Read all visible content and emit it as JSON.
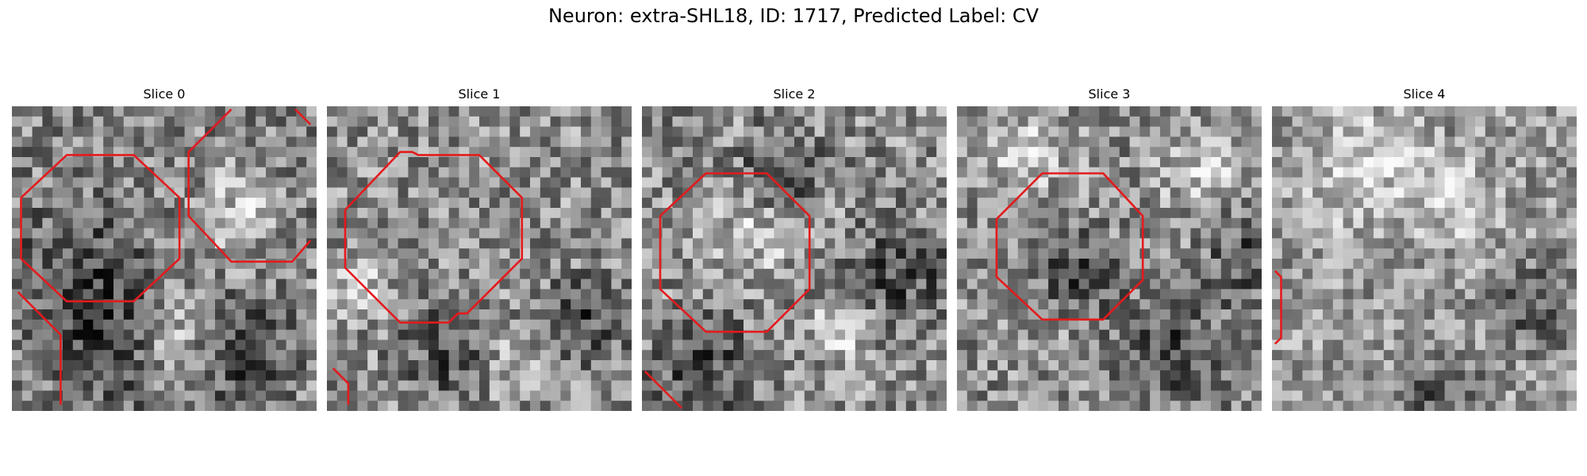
{
  "figure": {
    "title": "Neuron: extra-SHL18, ID: 1717, Predicted Label: CV",
    "overlay_color": "#e41a1c",
    "grid_cells": 30
  },
  "slices": [
    {
      "label": "Slice 0",
      "brightness": 0.52,
      "contrast": 0.55,
      "seed": 11,
      "dark_regions": [
        [
          0.22,
          0.55,
          0.32
        ],
        [
          0.3,
          0.8,
          0.28
        ],
        [
          0.75,
          0.8,
          0.25
        ]
      ],
      "bright_regions": [
        [
          0.75,
          0.35,
          0.22
        ],
        [
          0.55,
          0.78,
          0.18
        ]
      ],
      "polylines": [
        [
          [
            0.03,
            0.3
          ],
          [
            0.18,
            0.16
          ],
          [
            0.4,
            0.16
          ],
          [
            0.55,
            0.3
          ],
          [
            0.55,
            0.5
          ],
          [
            0.4,
            0.64
          ],
          [
            0.18,
            0.64
          ],
          [
            0.03,
            0.5
          ],
          [
            0.03,
            0.3
          ]
        ],
        [
          [
            0.72,
            0.01
          ],
          [
            0.58,
            0.15
          ],
          [
            0.58,
            0.36
          ],
          [
            0.72,
            0.51
          ],
          [
            0.92,
            0.51
          ],
          [
            0.98,
            0.44
          ]
        ],
        [
          [
            0.93,
            0.01
          ],
          [
            0.98,
            0.06
          ]
        ],
        [
          [
            0.02,
            0.61
          ],
          [
            0.16,
            0.75
          ],
          [
            0.16,
            0.98
          ]
        ]
      ]
    },
    {
      "label": "Slice 1",
      "brightness": 0.56,
      "contrast": 0.55,
      "seed": 23,
      "dark_regions": [
        [
          0.85,
          0.7,
          0.22
        ],
        [
          0.4,
          0.8,
          0.25
        ]
      ],
      "bright_regions": [
        [
          0.1,
          0.6,
          0.15
        ],
        [
          0.6,
          0.85,
          0.15
        ]
      ],
      "polylines": [
        [
          [
            0.06,
            0.34
          ],
          [
            0.24,
            0.15
          ],
          [
            0.28,
            0.15
          ],
          [
            0.3,
            0.16
          ],
          [
            0.5,
            0.16
          ],
          [
            0.64,
            0.3
          ],
          [
            0.64,
            0.5
          ],
          [
            0.46,
            0.68
          ],
          [
            0.43,
            0.68
          ],
          [
            0.4,
            0.71
          ],
          [
            0.24,
            0.71
          ],
          [
            0.06,
            0.53
          ],
          [
            0.06,
            0.34
          ]
        ],
        [
          [
            0.02,
            0.86
          ],
          [
            0.07,
            0.91
          ],
          [
            0.07,
            0.98
          ]
        ]
      ]
    },
    {
      "label": "Slice 2",
      "brightness": 0.55,
      "contrast": 0.58,
      "seed": 37,
      "dark_regions": [
        [
          0.85,
          0.55,
          0.25
        ],
        [
          0.2,
          0.85,
          0.25
        ],
        [
          0.45,
          0.2,
          0.18
        ]
      ],
      "bright_regions": [
        [
          0.35,
          0.45,
          0.2
        ],
        [
          0.65,
          0.75,
          0.15
        ]
      ],
      "polylines": [
        [
          [
            0.06,
            0.36
          ],
          [
            0.21,
            0.22
          ],
          [
            0.41,
            0.22
          ],
          [
            0.55,
            0.36
          ],
          [
            0.55,
            0.6
          ],
          [
            0.41,
            0.74
          ],
          [
            0.21,
            0.74
          ],
          [
            0.06,
            0.6
          ],
          [
            0.06,
            0.36
          ]
        ],
        [
          [
            0.01,
            0.87
          ],
          [
            0.13,
            0.99
          ]
        ]
      ]
    },
    {
      "label": "Slice 3",
      "brightness": 0.55,
      "contrast": 0.55,
      "seed": 53,
      "dark_regions": [
        [
          0.7,
          0.8,
          0.28
        ],
        [
          0.4,
          0.55,
          0.2
        ],
        [
          0.95,
          0.5,
          0.2
        ]
      ],
      "bright_regions": [
        [
          0.2,
          0.15,
          0.25
        ],
        [
          0.8,
          0.2,
          0.2
        ]
      ],
      "polylines": [
        [
          [
            0.13,
            0.37
          ],
          [
            0.28,
            0.22
          ],
          [
            0.48,
            0.22
          ],
          [
            0.61,
            0.36
          ],
          [
            0.61,
            0.57
          ],
          [
            0.48,
            0.7
          ],
          [
            0.28,
            0.7
          ],
          [
            0.13,
            0.56
          ],
          [
            0.13,
            0.37
          ]
        ]
      ]
    },
    {
      "label": "Slice 4",
      "brightness": 0.6,
      "contrast": 0.5,
      "seed": 71,
      "dark_regions": [
        [
          0.85,
          0.65,
          0.22
        ],
        [
          0.55,
          0.95,
          0.2
        ]
      ],
      "bright_regions": [
        [
          0.3,
          0.2,
          0.3
        ],
        [
          0.6,
          0.3,
          0.2
        ]
      ],
      "polylines": [
        [
          [
            0.01,
            0.54
          ],
          [
            0.03,
            0.56
          ],
          [
            0.03,
            0.76
          ],
          [
            0.01,
            0.78
          ]
        ]
      ]
    }
  ]
}
